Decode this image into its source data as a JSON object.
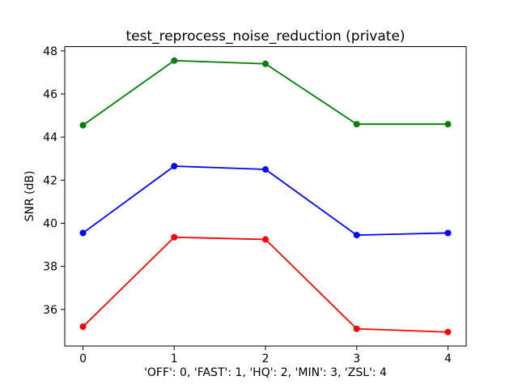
{
  "chart_data": {
    "type": "line",
    "title": "test_reprocess_noise_reduction (private)",
    "xlabel": "'OFF': 0, 'FAST': 1, 'HQ': 2, 'MIN': 3, 'ZSL': 4",
    "ylabel": "SNR (dB)",
    "x": [
      0,
      1,
      2,
      3,
      4
    ],
    "x_tick_labels": [
      "0",
      "1",
      "2",
      "3",
      "4"
    ],
    "y_ticks": [
      36,
      38,
      40,
      42,
      44,
      46,
      48
    ],
    "xlim": [
      -0.2,
      4.2
    ],
    "ylim": [
      34.3,
      48.2
    ],
    "grid": false,
    "legend": "none",
    "background_color": "#ffffff",
    "axes_color": "#000000",
    "series": [
      {
        "name": "green",
        "color": "#008000",
        "values": [
          44.55,
          47.55,
          47.4,
          44.6,
          44.6
        ]
      },
      {
        "name": "blue",
        "color": "#0000ff",
        "values": [
          39.55,
          42.65,
          42.5,
          39.45,
          39.55
        ]
      },
      {
        "name": "red",
        "color": "#ff0000",
        "values": [
          35.2,
          39.35,
          39.25,
          35.1,
          34.95
        ]
      }
    ]
  }
}
